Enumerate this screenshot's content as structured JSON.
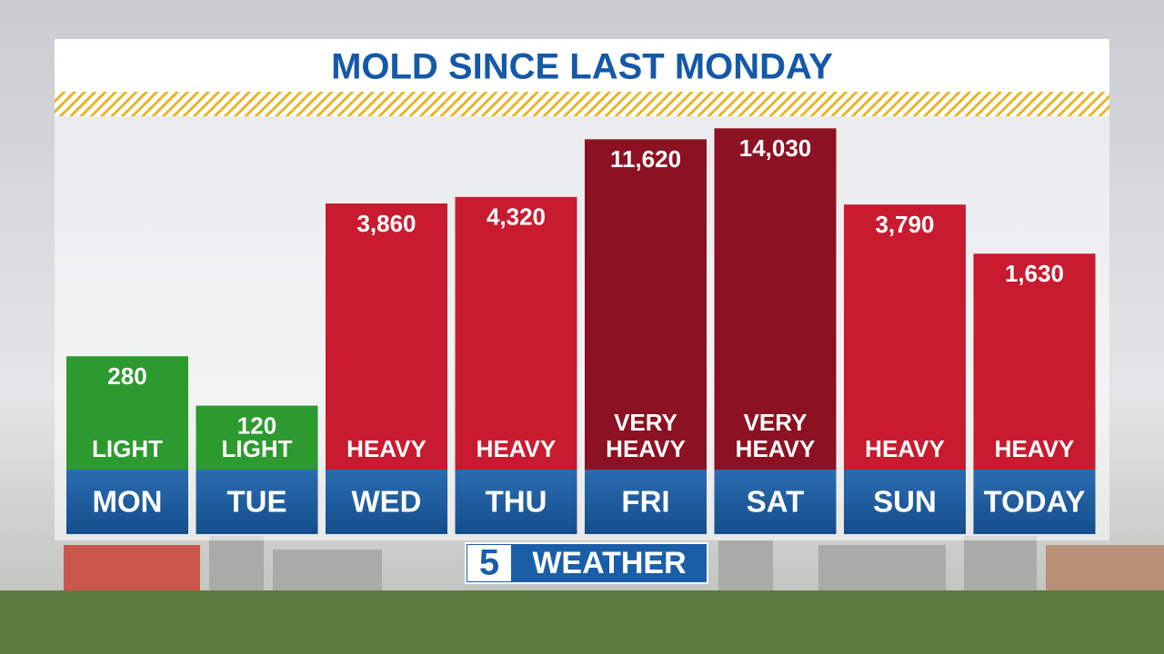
{
  "chart_data": {
    "type": "bar",
    "title": "MOLD SINCE LAST MONDAY",
    "categories": [
      "MON",
      "TUE",
      "WED",
      "THU",
      "FRI",
      "SAT",
      "SUN",
      "TODAY"
    ],
    "values": [
      280,
      120,
      3860,
      4320,
      11620,
      14030,
      3790,
      1630
    ],
    "value_labels": [
      "280",
      "120",
      "3,860",
      "4,320",
      "11,620",
      "14,030",
      "3,790",
      "1,630"
    ],
    "levels": [
      "LIGHT",
      "LIGHT",
      "HEAVY",
      "HEAVY",
      "VERY HEAVY",
      "VERY HEAVY",
      "HEAVY",
      "HEAVY"
    ],
    "colors": [
      "#2c9a2e",
      "#2c9a2e",
      "#c81b30",
      "#c81b30",
      "#8c1122",
      "#8c1122",
      "#c81b30",
      "#c81b30"
    ],
    "log_scale": true,
    "ylim": [
      40,
      15000
    ]
  },
  "branding": {
    "number": "5",
    "text": "WEATHER"
  }
}
